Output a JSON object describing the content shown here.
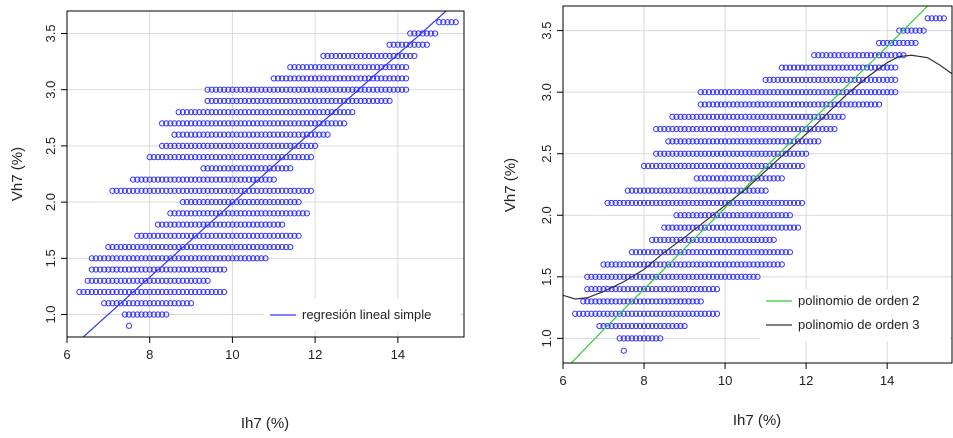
{
  "chart_data": [
    {
      "type": "scatter",
      "xlabel": "Ih7 (%)",
      "ylabel": "Vh7 (%)",
      "xlim": [
        6.0,
        15.6
      ],
      "ylim": [
        0.8,
        3.7
      ],
      "xticks": [
        6,
        8,
        10,
        12,
        14
      ],
      "yticks": [
        1.0,
        1.5,
        2.0,
        2.5,
        3.0,
        3.5
      ],
      "tick_labels_x": [
        "6",
        "8",
        "10",
        "12",
        "14"
      ],
      "tick_labels_y": [
        "1.0",
        "1.5",
        "2.0",
        "2.5",
        "3.0",
        "3.5"
      ],
      "grid": true,
      "legend_position": "bottom-right",
      "colors": {
        "points": "#3333ff",
        "fit": "#3333ff",
        "grid": "#d9d9d9",
        "axes": "#000000"
      },
      "series": [
        {
          "name": "regresión lineal simple",
          "kind": "line",
          "color": "#3333ff",
          "x": [
            6.2,
            15.6
          ],
          "y": [
            0.737,
            3.843
          ]
        }
      ]
    },
    {
      "type": "scatter",
      "xlabel": "Ih7 (%)",
      "ylabel": "Vh7 (%)",
      "xlim": [
        6.0,
        15.6
      ],
      "ylim": [
        0.8,
        3.7
      ],
      "xticks": [
        6,
        8,
        10,
        12,
        14
      ],
      "yticks": [
        1.0,
        1.5,
        2.0,
        2.5,
        3.0,
        3.5
      ],
      "tick_labels_x": [
        "6",
        "8",
        "10",
        "12",
        "14"
      ],
      "tick_labels_y": [
        "1.0",
        "1.5",
        "2.0",
        "2.5",
        "3.0",
        "3.5"
      ],
      "grid": true,
      "legend_position": "bottom-right",
      "colors": {
        "points": "#3333ff",
        "order2": "#33cc33",
        "order3": "#333333",
        "grid": "#d9d9d9",
        "axes": "#000000"
      },
      "series": [
        {
          "name": "polinomio de orden 2",
          "kind": "line",
          "color": "#33cc33",
          "x": [
            6.0,
            7.0,
            8.0,
            9.0,
            10.0,
            11.0,
            12.0,
            13.0,
            14.0,
            15.0,
            15.6
          ],
          "y": [
            0.73,
            1.07,
            1.4,
            1.73,
            2.06,
            2.39,
            2.72,
            3.05,
            3.37,
            3.7,
            3.89
          ]
        },
        {
          "name": "polinomio de orden 3",
          "kind": "line",
          "color": "#333333",
          "x": [
            6.0,
            6.3,
            6.6,
            7.0,
            7.5,
            8.0,
            8.5,
            9.0,
            9.5,
            10.0,
            10.5,
            11.0,
            11.5,
            12.0,
            12.5,
            13.0,
            13.5,
            14.0,
            14.3,
            14.6,
            15.0,
            15.3,
            15.6
          ],
          "y": [
            1.35,
            1.32,
            1.33,
            1.38,
            1.46,
            1.56,
            1.7,
            1.82,
            1.95,
            2.08,
            2.21,
            2.36,
            2.51,
            2.66,
            2.82,
            2.98,
            3.12,
            3.24,
            3.29,
            3.3,
            3.28,
            3.22,
            3.15
          ]
        }
      ]
    }
  ]
}
